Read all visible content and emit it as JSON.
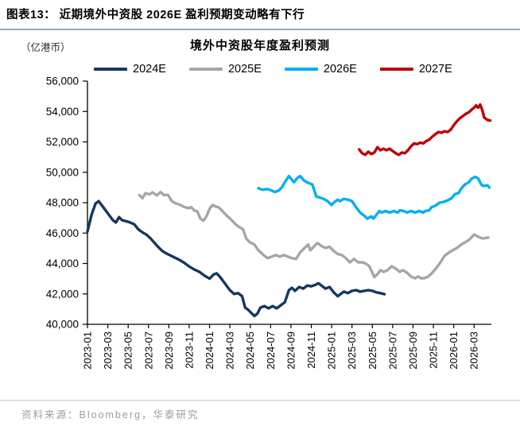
{
  "header": {
    "title": "图表13：  近期境外中资股 2026E 盈利预期变动略有下行"
  },
  "footer": {
    "source": "资料来源：Bloomberg，华泰研究"
  },
  "chart_data": {
    "type": "line",
    "title": "境外中资股年度盈利预测",
    "unit_label": "（亿港币）",
    "x_unit": "months since 2023-01",
    "x_axis_months_span": 39.7,
    "x_tick_month_step": 2,
    "x_tick_labels": [
      "2023-01",
      "2023-03",
      "2023-05",
      "2023-07",
      "2023-09",
      "2023-11",
      "2024-01",
      "2024-03",
      "2024-05",
      "2024-07",
      "2024-09",
      "2024-11",
      "2025-01",
      "2025-03",
      "2025-05",
      "2025-07",
      "2025-09",
      "2025-11",
      "2026-01",
      "2026-03"
    ],
    "ylim": [
      40000,
      56000
    ],
    "y_ticks": [
      40000,
      42000,
      44000,
      46000,
      48000,
      50000,
      52000,
      54000,
      56000
    ],
    "y_tick_labels": [
      "40,000",
      "42,000",
      "44,000",
      "46,000",
      "48,000",
      "50,000",
      "52,000",
      "54,000",
      "56,000"
    ],
    "grid": false,
    "legend_position": "top",
    "axis_color": "#000000",
    "series": [
      {
        "name": "2024E",
        "color": "#17375E",
        "points": [
          [
            0,
            46100
          ],
          [
            0.4,
            47200
          ],
          [
            0.8,
            47950
          ],
          [
            1.1,
            48100
          ],
          [
            1.5,
            47750
          ],
          [
            2,
            47300
          ],
          [
            2.5,
            46850
          ],
          [
            2.8,
            46700
          ],
          [
            3.1,
            47050
          ],
          [
            3.4,
            46850
          ],
          [
            3.8,
            46780
          ],
          [
            4.2,
            46700
          ],
          [
            4.6,
            46580
          ],
          [
            5,
            46250
          ],
          [
            5.4,
            46050
          ],
          [
            5.8,
            45900
          ],
          [
            6.2,
            45650
          ],
          [
            6.6,
            45350
          ],
          [
            7,
            45050
          ],
          [
            7.4,
            44800
          ],
          [
            7.8,
            44650
          ],
          [
            8.2,
            44520
          ],
          [
            8.6,
            44380
          ],
          [
            9,
            44250
          ],
          [
            9.5,
            44050
          ],
          [
            10,
            43800
          ],
          [
            10.5,
            43600
          ],
          [
            11,
            43450
          ],
          [
            11.5,
            43200
          ],
          [
            12,
            43000
          ],
          [
            12.4,
            43280
          ],
          [
            12.7,
            43350
          ],
          [
            13,
            43150
          ],
          [
            13.5,
            42700
          ],
          [
            14,
            42250
          ],
          [
            14.4,
            42000
          ],
          [
            14.8,
            42050
          ],
          [
            15.2,
            41850
          ],
          [
            15.5,
            41100
          ],
          [
            15.8,
            40950
          ],
          [
            16.1,
            40750
          ],
          [
            16.4,
            40550
          ],
          [
            16.7,
            40700
          ],
          [
            17,
            41100
          ],
          [
            17.4,
            41200
          ],
          [
            17.8,
            41050
          ],
          [
            18.2,
            41200
          ],
          [
            18.6,
            41050
          ],
          [
            19,
            41250
          ],
          [
            19.4,
            41450
          ],
          [
            19.8,
            42250
          ],
          [
            20.1,
            42400
          ],
          [
            20.4,
            42200
          ],
          [
            20.8,
            42450
          ],
          [
            21.2,
            42350
          ],
          [
            21.6,
            42550
          ],
          [
            22,
            42500
          ],
          [
            22.4,
            42600
          ],
          [
            22.7,
            42700
          ],
          [
            23,
            42550
          ],
          [
            23.4,
            42350
          ],
          [
            23.8,
            42450
          ],
          [
            24.2,
            42100
          ],
          [
            24.6,
            41850
          ],
          [
            24.9,
            42000
          ],
          [
            25.2,
            42150
          ],
          [
            25.6,
            42050
          ],
          [
            26,
            42200
          ],
          [
            26.4,
            42250
          ],
          [
            26.8,
            42150
          ],
          [
            27.2,
            42200
          ],
          [
            27.6,
            42250
          ],
          [
            28,
            42200
          ],
          [
            28.4,
            42100
          ],
          [
            28.8,
            42050
          ],
          [
            29.2,
            41980
          ]
        ]
      },
      {
        "name": "2025E",
        "color": "#A6A6A6",
        "points": [
          [
            5.1,
            48500
          ],
          [
            5.4,
            48300
          ],
          [
            5.7,
            48620
          ],
          [
            6.1,
            48550
          ],
          [
            6.4,
            48680
          ],
          [
            6.8,
            48480
          ],
          [
            7.2,
            48700
          ],
          [
            7.5,
            48500
          ],
          [
            7.9,
            48520
          ],
          [
            8.3,
            48100
          ],
          [
            8.6,
            47980
          ],
          [
            9.1,
            47870
          ],
          [
            9.5,
            47720
          ],
          [
            9.9,
            47640
          ],
          [
            10.2,
            47700
          ],
          [
            10.5,
            47480
          ],
          [
            10.8,
            47430
          ],
          [
            11.1,
            46950
          ],
          [
            11.4,
            46820
          ],
          [
            11.7,
            47100
          ],
          [
            12,
            47600
          ],
          [
            12.3,
            47850
          ],
          [
            12.6,
            47750
          ],
          [
            12.9,
            47690
          ],
          [
            13.3,
            47420
          ],
          [
            13.7,
            47150
          ],
          [
            14.1,
            46900
          ],
          [
            14.5,
            46620
          ],
          [
            14.9,
            46400
          ],
          [
            15.3,
            46250
          ],
          [
            15.6,
            45650
          ],
          [
            15.9,
            45430
          ],
          [
            16.4,
            45250
          ],
          [
            16.8,
            44870
          ],
          [
            17.3,
            44560
          ],
          [
            17.7,
            44350
          ],
          [
            18.1,
            44450
          ],
          [
            18.5,
            44560
          ],
          [
            18.9,
            44450
          ],
          [
            19.3,
            44560
          ],
          [
            19.7,
            44450
          ],
          [
            20.1,
            44350
          ],
          [
            20.5,
            44300
          ],
          [
            20.9,
            44720
          ],
          [
            21.3,
            45000
          ],
          [
            21.7,
            45250
          ],
          [
            21.9,
            44870
          ],
          [
            22.2,
            45080
          ],
          [
            22.6,
            45350
          ],
          [
            23,
            45150
          ],
          [
            23.4,
            45020
          ],
          [
            23.8,
            45100
          ],
          [
            24.2,
            44820
          ],
          [
            24.6,
            44620
          ],
          [
            25,
            44560
          ],
          [
            25.4,
            44350
          ],
          [
            25.8,
            44080
          ],
          [
            26.2,
            44300
          ],
          [
            26.6,
            44080
          ],
          [
            27,
            44080
          ],
          [
            27.4,
            43980
          ],
          [
            27.7,
            43820
          ],
          [
            28,
            43400
          ],
          [
            28.2,
            43100
          ],
          [
            28.5,
            43300
          ],
          [
            28.8,
            43560
          ],
          [
            29.1,
            43450
          ],
          [
            29.5,
            43560
          ],
          [
            29.9,
            43820
          ],
          [
            30.3,
            43660
          ],
          [
            30.7,
            43450
          ],
          [
            31,
            43560
          ],
          [
            31.4,
            43400
          ],
          [
            31.8,
            43140
          ],
          [
            32.2,
            43030
          ],
          [
            32.5,
            43140
          ],
          [
            32.8,
            43030
          ],
          [
            33.1,
            43030
          ],
          [
            33.5,
            43140
          ],
          [
            33.9,
            43400
          ],
          [
            34.3,
            43710
          ],
          [
            34.7,
            44080
          ],
          [
            35.1,
            44500
          ],
          [
            35.5,
            44710
          ],
          [
            35.9,
            44870
          ],
          [
            36.3,
            45020
          ],
          [
            36.7,
            45230
          ],
          [
            37.1,
            45390
          ],
          [
            37.5,
            45550
          ],
          [
            37.8,
            45760
          ],
          [
            38,
            45910
          ],
          [
            38.4,
            45760
          ],
          [
            38.8,
            45650
          ],
          [
            39.1,
            45680
          ],
          [
            39.4,
            45710
          ]
        ]
      },
      {
        "name": "2026E",
        "color": "#00B0F0",
        "points": [
          [
            16.8,
            48950
          ],
          [
            17.2,
            48850
          ],
          [
            17.7,
            48900
          ],
          [
            18.1,
            48800
          ],
          [
            18.4,
            48700
          ],
          [
            18.8,
            48800
          ],
          [
            19.1,
            49000
          ],
          [
            19.5,
            49450
          ],
          [
            19.8,
            49750
          ],
          [
            20.1,
            49500
          ],
          [
            20.3,
            49350
          ],
          [
            20.6,
            49600
          ],
          [
            20.9,
            49750
          ],
          [
            21.3,
            49450
          ],
          [
            21.7,
            49300
          ],
          [
            22.1,
            49200
          ],
          [
            22.5,
            48400
          ],
          [
            22.8,
            48350
          ],
          [
            23.2,
            48250
          ],
          [
            23.6,
            48100
          ],
          [
            24,
            47850
          ],
          [
            24.2,
            48000
          ],
          [
            24.6,
            48200
          ],
          [
            24.8,
            48100
          ],
          [
            25.2,
            48250
          ],
          [
            25.6,
            48200
          ],
          [
            26,
            48100
          ],
          [
            26.4,
            47700
          ],
          [
            26.8,
            47350
          ],
          [
            27.2,
            47150
          ],
          [
            27.5,
            46950
          ],
          [
            27.9,
            47100
          ],
          [
            28.1,
            46950
          ],
          [
            28.4,
            47200
          ],
          [
            28.7,
            47450
          ],
          [
            28.9,
            47350
          ],
          [
            29.3,
            47450
          ],
          [
            29.7,
            47350
          ],
          [
            30.1,
            47450
          ],
          [
            30.5,
            47350
          ],
          [
            30.7,
            47500
          ],
          [
            31.1,
            47450
          ],
          [
            31.4,
            47350
          ],
          [
            31.8,
            47450
          ],
          [
            32.2,
            47350
          ],
          [
            32.6,
            47450
          ],
          [
            33,
            47350
          ],
          [
            33.2,
            47450
          ],
          [
            33.6,
            47500
          ],
          [
            33.8,
            47700
          ],
          [
            34.2,
            47800
          ],
          [
            34.6,
            48000
          ],
          [
            35,
            48050
          ],
          [
            35.4,
            48150
          ],
          [
            35.8,
            48300
          ],
          [
            36.1,
            48550
          ],
          [
            36.5,
            48650
          ],
          [
            36.7,
            48900
          ],
          [
            37.1,
            49200
          ],
          [
            37.5,
            49350
          ],
          [
            37.7,
            49550
          ],
          [
            38.1,
            49700
          ],
          [
            38.4,
            49600
          ],
          [
            38.7,
            49200
          ],
          [
            38.9,
            49100
          ],
          [
            39.3,
            49150
          ],
          [
            39.5,
            49000
          ]
        ]
      },
      {
        "name": "2027E",
        "color": "#C00000",
        "points": [
          [
            26.7,
            51500
          ],
          [
            27,
            51250
          ],
          [
            27.3,
            51150
          ],
          [
            27.6,
            51350
          ],
          [
            27.9,
            51200
          ],
          [
            28.2,
            51300
          ],
          [
            28.5,
            51650
          ],
          [
            28.8,
            51450
          ],
          [
            29.1,
            51550
          ],
          [
            29.4,
            51450
          ],
          [
            29.7,
            51550
          ],
          [
            30,
            51400
          ],
          [
            30.3,
            51250
          ],
          [
            30.6,
            51150
          ],
          [
            30.9,
            51300
          ],
          [
            31.2,
            51250
          ],
          [
            31.5,
            51450
          ],
          [
            31.8,
            51700
          ],
          [
            32.1,
            51900
          ],
          [
            32.4,
            51850
          ],
          [
            32.7,
            51950
          ],
          [
            33,
            51900
          ],
          [
            33.3,
            52050
          ],
          [
            33.6,
            52150
          ],
          [
            33.9,
            52350
          ],
          [
            34.2,
            52500
          ],
          [
            34.5,
            52650
          ],
          [
            34.8,
            52600
          ],
          [
            35.1,
            52700
          ],
          [
            35.4,
            52650
          ],
          [
            35.7,
            52800
          ],
          [
            36,
            53100
          ],
          [
            36.3,
            53350
          ],
          [
            36.6,
            53550
          ],
          [
            36.9,
            53700
          ],
          [
            37.2,
            53850
          ],
          [
            37.5,
            53950
          ],
          [
            37.8,
            54150
          ],
          [
            38,
            54250
          ],
          [
            38.2,
            54400
          ],
          [
            38.4,
            54250
          ],
          [
            38.6,
            54450
          ],
          [
            38.8,
            54100
          ],
          [
            39,
            53600
          ],
          [
            39.3,
            53450
          ],
          [
            39.6,
            53400
          ]
        ]
      }
    ]
  }
}
